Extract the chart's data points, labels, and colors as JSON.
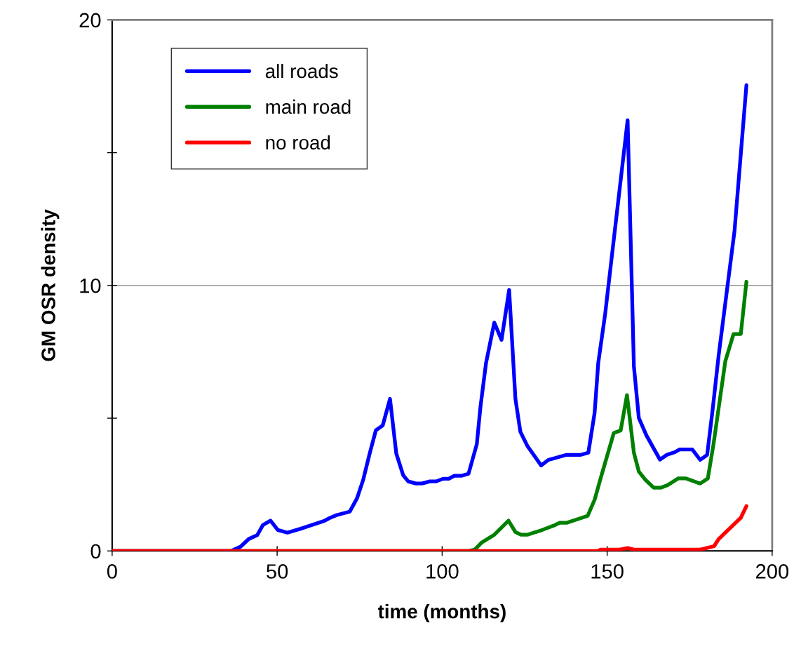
{
  "chart_data": {
    "type": "line",
    "xlabel": "time (months)",
    "ylabel": "GM OSR density",
    "xlim": [
      0,
      200
    ],
    "xticks": [
      0,
      50,
      100,
      150,
      200
    ],
    "ylim": [
      0,
      20
    ],
    "yticks": [
      0,
      {
        "value": 5,
        "label": null
      },
      10,
      {
        "value": 15,
        "label": null
      },
      20
    ],
    "grid": "y",
    "legend": "top left",
    "marker": "none",
    "line_style": "solid",
    "series": [
      {
        "name": "all roads",
        "color": "#0000ff",
        "x": [
          0,
          36,
          38.9,
          41.4,
          44,
          45.7,
          48,
          50.2,
          53.1,
          58,
          64.4,
          65.9,
          68,
          72,
          74.2,
          76.1,
          78,
          79.9,
          82,
          84.2,
          86.1,
          88.2,
          89.7,
          92,
          93.9,
          96.3,
          98.2,
          100.3,
          102,
          103.7,
          105.8,
          108,
          110.5,
          111.6,
          113.3,
          115.8,
          118,
          120.3,
          122.2,
          123.7,
          125.8,
          130,
          132.2,
          134.5,
          137.7,
          142,
          144.3,
          146.2,
          147.3,
          149.4,
          156.2,
          158.1,
          159.6,
          161.9,
          166,
          168.1,
          170.5,
          171.9,
          175.8,
          178.2,
          180.3,
          182,
          183.8,
          188.6,
          192.2
        ],
        "values": [
          0,
          0,
          0.16,
          0.45,
          0.6,
          0.98,
          1.14,
          0.79,
          0.69,
          0.87,
          1.14,
          1.24,
          1.35,
          1.48,
          1.98,
          2.69,
          3.65,
          4.54,
          4.73,
          5.73,
          3.67,
          2.85,
          2.62,
          2.54,
          2.54,
          2.62,
          2.62,
          2.72,
          2.72,
          2.83,
          2.83,
          2.91,
          4.02,
          5.42,
          7.08,
          8.6,
          7.95,
          9.83,
          5.73,
          4.49,
          3.96,
          3.22,
          3.43,
          3.51,
          3.62,
          3.62,
          3.7,
          5.2,
          7.08,
          8.93,
          16.22,
          6.96,
          5.01,
          4.35,
          3.44,
          3.62,
          3.72,
          3.82,
          3.82,
          3.43,
          3.62,
          5.36,
          7.38,
          12.06,
          17.54
        ]
      },
      {
        "name": "main road",
        "color": "#008000",
        "x": [
          0,
          108,
          109.9,
          112,
          115.8,
          120.1,
          122.2,
          123.9,
          125.8,
          130.3,
          134.3,
          135.6,
          137.7,
          144.1,
          146.2,
          148.1,
          152,
          154.1,
          156,
          158.1,
          159.6,
          161.5,
          164.1,
          166.2,
          168.3,
          171.5,
          173.9,
          178.2,
          180.5,
          182.2,
          185.8,
          188.3,
          190.5,
          192.2
        ],
        "values": [
          0,
          0,
          0.05,
          0.32,
          0.61,
          1.14,
          0.71,
          0.61,
          0.61,
          0.79,
          0.98,
          1.06,
          1.06,
          1.32,
          1.93,
          2.77,
          4.44,
          4.54,
          5.87,
          3.7,
          2.99,
          2.69,
          2.38,
          2.38,
          2.48,
          2.73,
          2.73,
          2.54,
          2.73,
          4.0,
          7.14,
          8.17,
          8.17,
          10.14
        ]
      },
      {
        "name": "no road",
        "color": "#ff0000",
        "x": [
          0,
          147.1,
          148,
          153.8,
          156.2,
          158.1,
          178.2,
          182.4,
          183.8,
          190.5,
          192.2
        ],
        "values": [
          0,
          0,
          0.05,
          0.05,
          0.11,
          0.05,
          0.05,
          0.18,
          0.45,
          1.25,
          1.69
        ]
      }
    ]
  }
}
